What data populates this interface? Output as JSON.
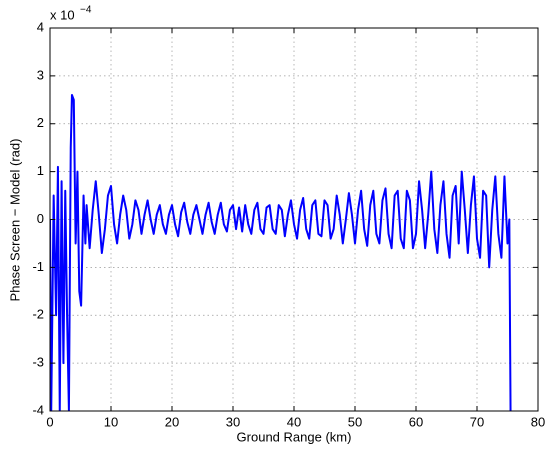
{
  "chart_data": {
    "type": "line",
    "x_label": "Ground Range (km)",
    "y_label": "Phase Screen − Model (rad)",
    "y_multiplier": {
      "base": "x 10",
      "exponent": "−4"
    },
    "xlim": [
      0,
      80
    ],
    "xticks": [
      0,
      10,
      20,
      30,
      40,
      50,
      60,
      70,
      80
    ],
    "ylim": [
      -4,
      4
    ],
    "yticks": [
      -4,
      -3,
      -2,
      -1,
      0,
      1,
      2,
      3,
      4
    ],
    "grid": true,
    "series": [
      {
        "color": "#0000ff",
        "x": [
          0,
          0.2,
          0.6,
          1,
          1.3,
          1.6,
          1.9,
          2.2,
          2.5,
          2.8,
          3.1,
          3.4,
          3.6,
          3.9,
          4.2,
          4.5,
          4.8,
          5.1,
          5.5,
          5.8,
          6,
          6.5,
          7,
          7.5,
          8,
          8.5,
          9,
          9.5,
          10,
          10.5,
          11,
          11.5,
          12,
          12.5,
          13,
          13.5,
          14,
          14.5,
          15,
          15.5,
          16,
          16.5,
          17,
          17.5,
          18,
          18.5,
          19,
          19.5,
          20,
          20.5,
          21,
          21.5,
          22,
          22.5,
          23,
          23.5,
          24,
          24.5,
          25,
          25.5,
          26,
          26.5,
          27,
          27.5,
          28,
          28.5,
          29,
          29.5,
          30,
          30.5,
          31,
          31.5,
          32,
          32.5,
          33,
          33.5,
          34,
          34.5,
          35,
          35.5,
          36,
          36.5,
          37,
          37.5,
          38,
          38.5,
          39,
          39.5,
          40,
          40.5,
          41,
          41.5,
          42,
          42.5,
          43,
          43.5,
          44,
          44.5,
          45,
          45.5,
          46,
          46.5,
          47,
          47.5,
          48,
          48.5,
          49,
          49.5,
          50,
          50.5,
          51,
          51.5,
          52,
          52.5,
          53,
          53.5,
          54,
          54.5,
          55,
          55.5,
          56,
          56.5,
          57,
          57.5,
          58,
          58.5,
          59,
          59.5,
          60,
          60.5,
          61,
          61.5,
          62,
          62.5,
          63,
          63.5,
          64,
          64.5,
          65,
          65.5,
          66,
          66.5,
          67,
          67.5,
          68,
          68.5,
          69,
          69.5,
          70,
          70.5,
          71,
          71.5,
          72,
          72.5,
          73,
          73.5,
          74,
          74.5,
          75,
          75.3,
          75.5
        ],
        "values": [
          0,
          -4,
          0.5,
          -2,
          1.1,
          -4,
          0.8,
          -3,
          0.6,
          -2,
          -4,
          1.5,
          2.6,
          2.5,
          -0.5,
          1.0,
          -1.5,
          -1.8,
          0.5,
          -0.5,
          0.3,
          -0.6,
          0.2,
          0.8,
          0.1,
          -0.7,
          -0.2,
          0.5,
          0.7,
          -0.1,
          -0.5,
          0.1,
          0.5,
          0.2,
          -0.4,
          -0.1,
          0.4,
          0.2,
          -0.3,
          0.1,
          0.4,
          0,
          -0.3,
          0.1,
          0.3,
          -0.1,
          -0.3,
          0.1,
          0.3,
          -0.1,
          -0.35,
          0.15,
          0.35,
          -0.05,
          -0.3,
          0.1,
          0.3,
          0,
          -0.3,
          0.1,
          0.35,
          -0.05,
          -0.3,
          0.1,
          0.35,
          -0.1,
          -0.25,
          0.2,
          0.3,
          -0.2,
          0.25,
          -0.25,
          0.3,
          -0.1,
          -0.3,
          0.2,
          0.35,
          -0.2,
          -0.3,
          0.25,
          0.3,
          -0.2,
          -0.3,
          0.3,
          0.2,
          -0.35,
          0.1,
          0.4,
          -0.1,
          -0.4,
          0.2,
          0.45,
          -0.2,
          -0.4,
          0.3,
          0.4,
          -0.3,
          -0.35,
          0.4,
          0.3,
          -0.4,
          -0.2,
          0.5,
          0.1,
          -0.5,
          0,
          0.55,
          0.1,
          -0.5,
          0.2,
          0.6,
          -0.2,
          -0.55,
          0.3,
          0.6,
          -0.3,
          -0.5,
          0.4,
          0.65,
          -0.3,
          -0.6,
          0.5,
          0.6,
          -0.4,
          -0.6,
          0.6,
          0.4,
          -0.6,
          -0.3,
          0.8,
          0.2,
          -0.6,
          0.1,
          1.0,
          -0.2,
          -0.7,
          0.3,
          0.8,
          -0.3,
          -0.8,
          0.5,
          0.7,
          -0.5,
          1.0,
          0.2,
          -0.7,
          0.3,
          0.9,
          -0.4,
          -0.8,
          0.6,
          0.5,
          -1.0,
          0.2,
          0.9,
          -0.3,
          -0.8,
          0.9,
          -0.5,
          0,
          -4
        ]
      }
    ]
  }
}
